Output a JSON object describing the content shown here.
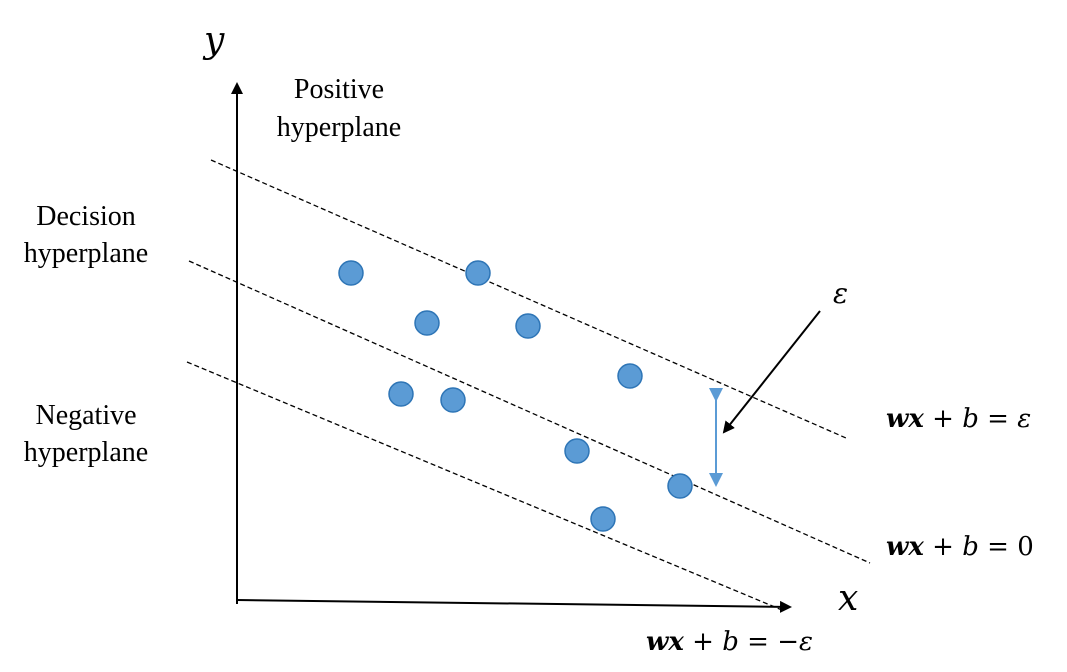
{
  "axes": {
    "x_label": "x",
    "y_label": "y"
  },
  "labels": {
    "positive_line1": "Positive",
    "positive_line2": "hyperplane",
    "decision_line1": "Decision",
    "decision_line2": "hyperplane",
    "negative_line1": "Negative",
    "negative_line2": "hyperplane",
    "epsilon": "ε"
  },
  "equations": {
    "positive": {
      "w": "w",
      "x": "x",
      "b": "b",
      "rhs": "ε",
      "op": " + ",
      "eq": " = "
    },
    "decision": {
      "w": "w",
      "x": "x",
      "b": "b",
      "rhs": "0",
      "op": " + ",
      "eq": " = "
    },
    "negative": {
      "w": "w",
      "x": "x",
      "b": "b",
      "rhs": "−ε",
      "op": " + ",
      "eq": " = "
    }
  },
  "colors": {
    "point_fill": "#5b9bd5",
    "point_stroke": "#2e75b6",
    "margin_arrow": "#5b9bd5"
  },
  "data_points_count": 10
}
